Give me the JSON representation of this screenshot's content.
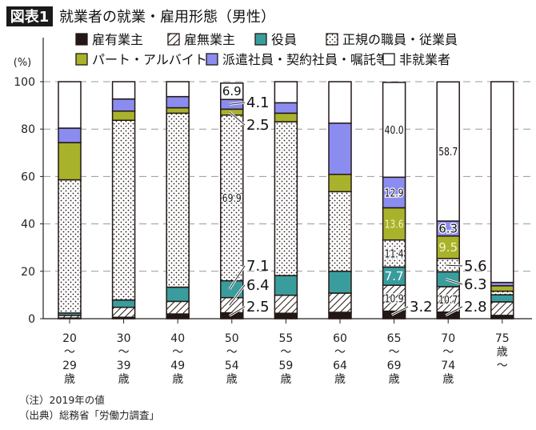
{
  "header": {
    "badge": "図表1",
    "title": "就業者の就業・雇用形態（男性）"
  },
  "footnotes": {
    "note": "（注）2019年の値",
    "source": "（出典）総務省「労働力調査」"
  },
  "chart_data": {
    "type": "bar",
    "stacked": true,
    "ylabel": "(%)",
    "ylim": [
      0,
      100
    ],
    "yticks": [
      "0",
      "20",
      "40",
      "60",
      "80",
      "100"
    ],
    "grid": true,
    "legend_position": "top",
    "categories": [
      {
        "lines": [
          "20",
          "〜",
          "29",
          "歳"
        ]
      },
      {
        "lines": [
          "30",
          "〜",
          "39",
          "歳"
        ]
      },
      {
        "lines": [
          "40",
          "〜",
          "49",
          "歳"
        ]
      },
      {
        "lines": [
          "50",
          "〜",
          "54",
          "歳"
        ]
      },
      {
        "lines": [
          "55",
          "〜",
          "59",
          "歳"
        ]
      },
      {
        "lines": [
          "60",
          "〜",
          "64",
          "歳"
        ]
      },
      {
        "lines": [
          "65",
          "〜",
          "69",
          "歳"
        ]
      },
      {
        "lines": [
          "70",
          "〜",
          "74",
          "歳"
        ]
      },
      {
        "lines": [
          "75",
          "歳",
          "〜"
        ]
      }
    ],
    "series": [
      {
        "name": "雇有業主",
        "fill": "solid",
        "color": "#231815",
        "values": [
          0.3,
          0.6,
          2.0,
          2.5,
          2.3,
          2.7,
          3.2,
          2.8,
          1.4
        ]
      },
      {
        "name": "雇無業主",
        "fill": "hatch",
        "color": "#231815",
        "values": [
          1.1,
          4.2,
          5.3,
          6.4,
          7.6,
          8.1,
          10.9,
          10.7,
          5.7
        ]
      },
      {
        "name": "役員",
        "fill": "solid",
        "color": "#3a9d9d",
        "values": [
          1.0,
          3.1,
          6.0,
          7.1,
          8.3,
          9.2,
          7.7,
          6.3,
          3.0
        ]
      },
      {
        "name": "正規の職員・従業員",
        "fill": "dots",
        "color": "#231815",
        "values": [
          56.2,
          75.8,
          73.4,
          69.9,
          64.9,
          33.6,
          11.4,
          5.6,
          1.5
        ]
      },
      {
        "name": "パート・アルバイト",
        "fill": "solid",
        "color": "#a9b22b",
        "values": [
          15.7,
          3.9,
          2.3,
          2.5,
          3.6,
          7.3,
          13.6,
          9.5,
          2.3
        ]
      },
      {
        "name": "派遣社員・契約社員・嘱託等",
        "fill": "solid",
        "color": "#8b8cf0",
        "values": [
          6.1,
          5.1,
          4.7,
          4.1,
          4.4,
          21.6,
          12.9,
          6.3,
          1.4
        ]
      },
      {
        "name": "非就業者",
        "fill": "solid",
        "color": "#ffffff",
        "values": [
          19.6,
          7.3,
          6.3,
          6.9,
          8.9,
          17.5,
          40.0,
          58.7,
          84.7
        ]
      }
    ],
    "data_labels": [
      {
        "bar": 3,
        "series": 6,
        "text": "6.9",
        "placement": "inside"
      },
      {
        "bar": 3,
        "series": 5,
        "text": "4.1",
        "placement": "outside"
      },
      {
        "bar": 3,
        "series": 4,
        "text": "2.5",
        "placement": "outside"
      },
      {
        "bar": 3,
        "series": 3,
        "text": "69.9",
        "placement": "inside"
      },
      {
        "bar": 3,
        "series": 2,
        "text": "7.1",
        "placement": "outside"
      },
      {
        "bar": 3,
        "series": 1,
        "text": "6.4",
        "placement": "outside"
      },
      {
        "bar": 3,
        "series": 0,
        "text": "2.5",
        "placement": "outside"
      },
      {
        "bar": 6,
        "series": 6,
        "text": "40.0",
        "placement": "inside"
      },
      {
        "bar": 6,
        "series": 5,
        "text": "12.9",
        "placement": "inside"
      },
      {
        "bar": 6,
        "series": 4,
        "text": "13.6",
        "placement": "inside"
      },
      {
        "bar": 6,
        "series": 3,
        "text": "11.4",
        "placement": "inside"
      },
      {
        "bar": 6,
        "series": 2,
        "text": "7.7",
        "placement": "inside"
      },
      {
        "bar": 6,
        "series": 1,
        "text": "10.9",
        "placement": "inside"
      },
      {
        "bar": 6,
        "series": 0,
        "text": "3.2",
        "placement": "outside"
      },
      {
        "bar": 7,
        "series": 6,
        "text": "58.7",
        "placement": "inside"
      },
      {
        "bar": 7,
        "series": 5,
        "text": "6.3",
        "placement": "inside"
      },
      {
        "bar": 7,
        "series": 4,
        "text": "9.5",
        "placement": "inside"
      },
      {
        "bar": 7,
        "series": 3,
        "text": "5.6",
        "placement": "outside"
      },
      {
        "bar": 7,
        "series": 2,
        "text": "6.3",
        "placement": "outside"
      },
      {
        "bar": 7,
        "series": 1,
        "text": "10.7",
        "placement": "inside"
      },
      {
        "bar": 7,
        "series": 0,
        "text": "2.8",
        "placement": "outside"
      }
    ]
  }
}
